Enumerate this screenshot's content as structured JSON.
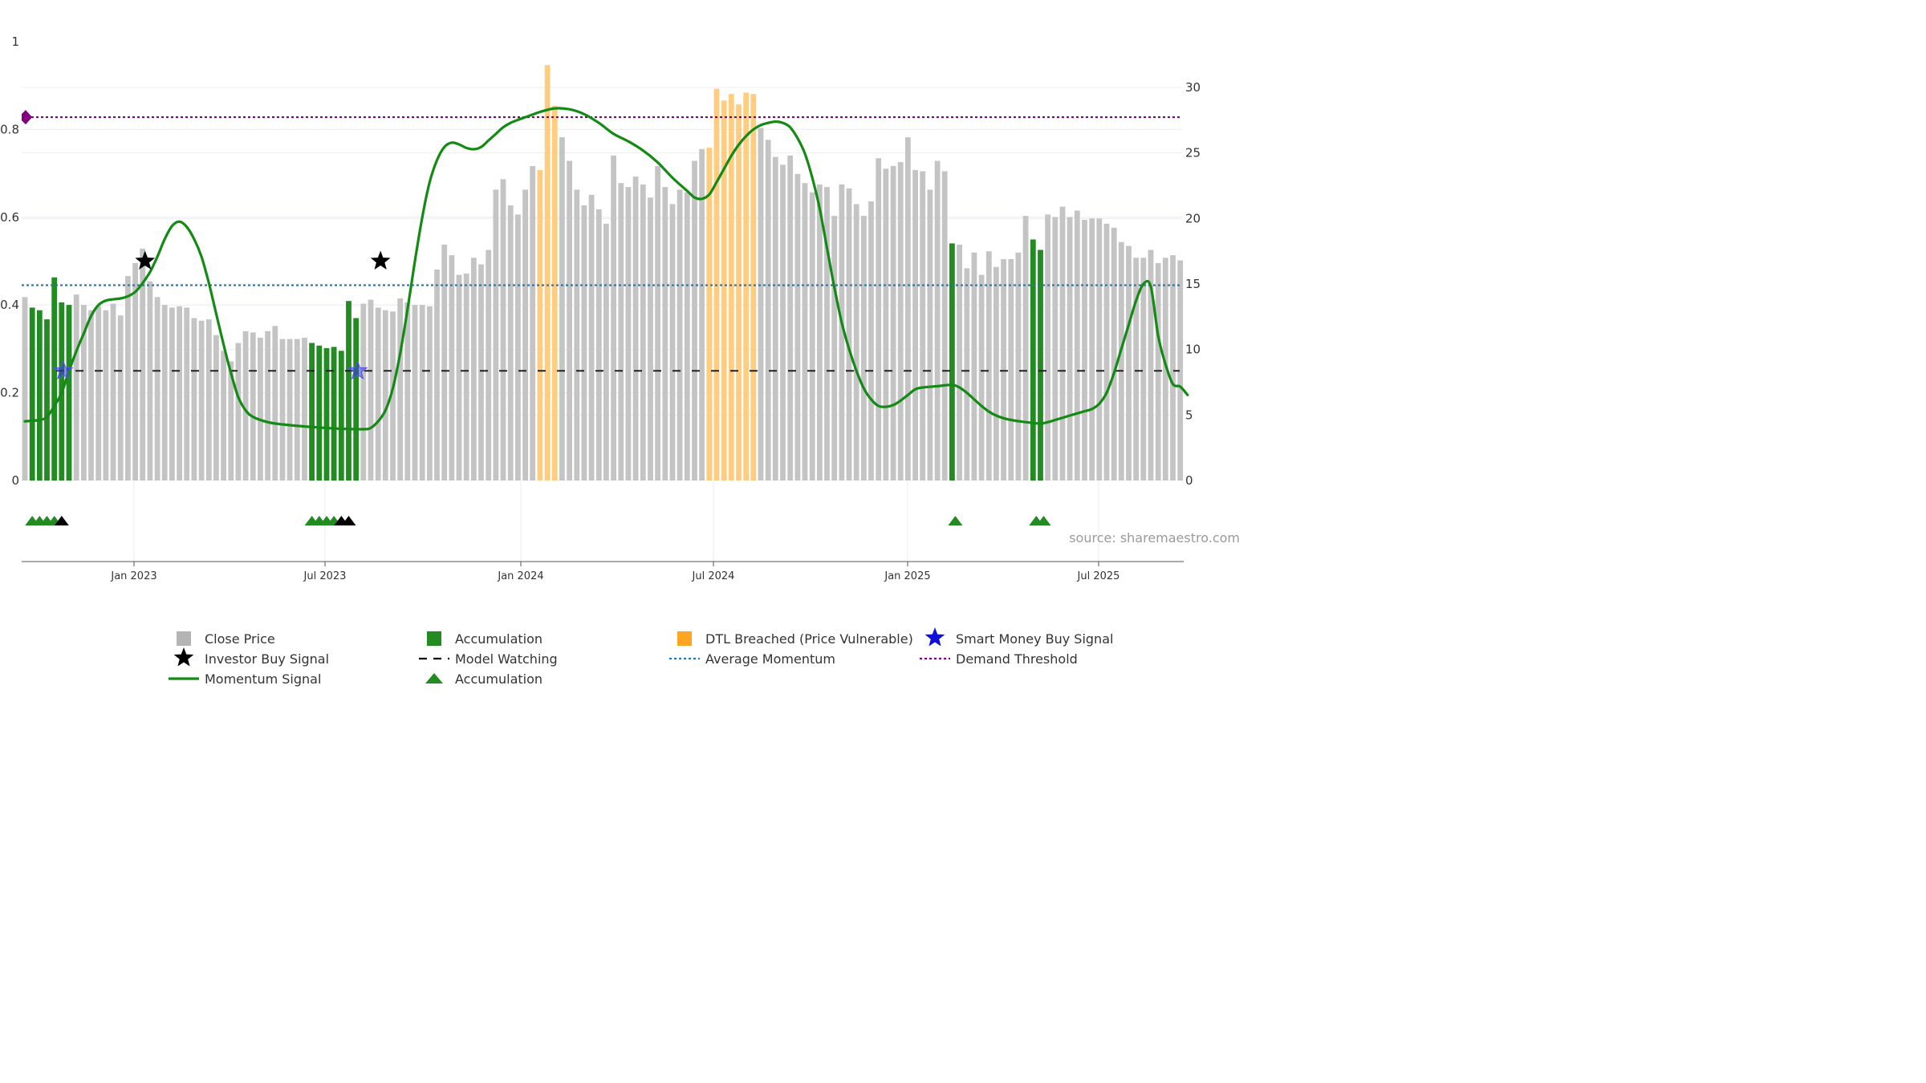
{
  "chart_data": {
    "type": "bar",
    "title": "",
    "source_note": "source: sharemaestro.com",
    "x_ticks": [
      "Jan 2023",
      "Jul 2023",
      "Jan 2024",
      "Jul 2024",
      "Jan 2025",
      "Jul 2025"
    ],
    "left_axis": {
      "ylim": [
        0,
        1
      ],
      "ticks": [
        "0",
        "0.2",
        "0.4",
        "0.6",
        "0.8",
        "1"
      ]
    },
    "right_axis": {
      "ylim": [
        0,
        33.5
      ],
      "ticks": [
        "0",
        "5",
        "10",
        "15",
        "20",
        "25",
        "30"
      ]
    },
    "grid": true,
    "legend_position": "bottom",
    "colors": {
      "close": "#c4c4c4",
      "accumulation": "#228b22",
      "dtl": "#ffcc80",
      "momentum": "#138a13",
      "model_watching": "#222222",
      "average_momentum": "#1f77b4",
      "demand_threshold": "#800080",
      "smart_money": "#2222cc",
      "investor": "#000000"
    },
    "close_price_weekly": [
      14.0,
      13.2,
      13.0,
      12.3,
      15.5,
      13.6,
      13.4,
      14.2,
      13.4,
      13.0,
      13.3,
      13.0,
      13.5,
      12.6,
      15.6,
      16.6,
      17.7,
      15.2,
      14.0,
      13.4,
      13.2,
      13.3,
      13.2,
      12.4,
      12.2,
      12.3,
      11.1,
      9.9,
      9.1,
      10.5,
      11.4,
      11.3,
      10.9,
      11.4,
      11.8,
      10.8,
      10.8,
      10.8,
      10.9,
      10.5,
      10.3,
      10.1,
      10.2,
      9.9,
      13.7,
      12.4,
      13.5,
      13.8,
      13.2,
      13.0,
      12.9,
      13.9,
      13.6,
      13.4,
      13.4,
      13.3,
      16.1,
      18.0,
      17.2,
      15.7,
      15.8,
      17.0,
      16.5,
      17.6,
      22.2,
      23.0,
      21.0,
      20.3,
      22.2,
      24.0,
      23.7,
      31.7,
      28.6,
      26.2,
      24.4,
      22.2,
      21.0,
      21.8,
      20.7,
      19.6,
      24.8,
      22.7,
      22.4,
      23.2,
      22.6,
      21.6,
      24.0,
      22.4,
      21.1,
      22.2,
      22.0,
      24.4,
      25.3,
      25.4,
      29.9,
      29.0,
      29.5,
      28.7,
      29.6,
      29.5,
      26.9,
      26.0,
      24.7,
      24.1,
      24.8,
      23.4,
      22.7,
      22.0,
      22.6,
      22.4,
      20.2,
      22.6,
      22.3,
      21.1,
      20.2,
      21.3,
      24.6,
      23.8,
      24.0,
      24.3,
      26.2,
      23.7,
      23.6,
      22.2,
      24.4,
      23.6,
      18.1,
      18.0,
      16.2,
      17.4,
      15.7,
      17.5,
      16.3,
      16.9,
      16.9,
      17.4,
      20.2,
      18.4,
      17.6,
      20.3,
      20.1,
      20.9,
      20.1,
      20.6,
      19.9,
      20.0,
      20.0,
      19.6,
      19.3,
      18.2,
      17.9,
      17.0,
      17.0,
      17.6,
      16.6,
      17.0,
      17.2,
      16.8
    ],
    "accumulation_weeks": [
      1,
      2,
      3,
      4,
      5,
      6,
      39,
      40,
      41,
      42,
      43,
      44,
      45,
      126,
      137,
      138
    ],
    "dtl_weeks": [
      70,
      71,
      72,
      93,
      94,
      95,
      96,
      97,
      98,
      99
    ],
    "momentum_signal_points": [
      [
        0,
        0.135
      ],
      [
        2,
        0.138
      ],
      [
        3,
        0.145
      ],
      [
        4,
        0.17
      ],
      [
        5,
        0.2
      ],
      [
        6,
        0.25
      ],
      [
        7,
        0.295
      ],
      [
        8,
        0.335
      ],
      [
        9,
        0.375
      ],
      [
        10,
        0.4
      ],
      [
        11,
        0.41
      ],
      [
        12,
        0.413
      ],
      [
        13,
        0.415
      ],
      [
        14,
        0.42
      ],
      [
        15,
        0.43
      ],
      [
        16,
        0.45
      ],
      [
        17,
        0.475
      ],
      [
        18,
        0.51
      ],
      [
        19,
        0.55
      ],
      [
        20,
        0.58
      ],
      [
        21,
        0.59
      ],
      [
        22,
        0.578
      ],
      [
        23,
        0.55
      ],
      [
        24,
        0.51
      ],
      [
        25,
        0.45
      ],
      [
        26,
        0.38
      ],
      [
        27,
        0.31
      ],
      [
        28,
        0.245
      ],
      [
        29,
        0.19
      ],
      [
        30,
        0.16
      ],
      [
        31,
        0.145
      ],
      [
        33,
        0.133
      ],
      [
        35,
        0.128
      ],
      [
        39,
        0.122
      ],
      [
        43,
        0.118
      ],
      [
        46,
        0.117
      ],
      [
        47,
        0.12
      ],
      [
        48,
        0.135
      ],
      [
        49,
        0.16
      ],
      [
        50,
        0.21
      ],
      [
        51,
        0.29
      ],
      [
        52,
        0.39
      ],
      [
        53,
        0.5
      ],
      [
        54,
        0.6
      ],
      [
        55,
        0.68
      ],
      [
        56,
        0.73
      ],
      [
        57,
        0.76
      ],
      [
        58,
        0.77
      ],
      [
        59,
        0.766
      ],
      [
        60,
        0.758
      ],
      [
        61,
        0.755
      ],
      [
        62,
        0.76
      ],
      [
        63,
        0.775
      ],
      [
        64,
        0.79
      ],
      [
        65,
        0.805
      ],
      [
        66,
        0.815
      ],
      [
        67,
        0.822
      ],
      [
        68,
        0.828
      ],
      [
        69,
        0.834
      ],
      [
        70,
        0.84
      ],
      [
        72,
        0.848
      ],
      [
        74,
        0.846
      ],
      [
        76,
        0.835
      ],
      [
        78,
        0.815
      ],
      [
        80,
        0.79
      ],
      [
        82,
        0.773
      ],
      [
        84,
        0.752
      ],
      [
        86,
        0.725
      ],
      [
        88,
        0.69
      ],
      [
        90,
        0.66
      ],
      [
        91,
        0.645
      ],
      [
        92,
        0.642
      ],
      [
        93,
        0.652
      ],
      [
        94,
        0.68
      ],
      [
        95,
        0.71
      ],
      [
        96,
        0.74
      ],
      [
        97,
        0.765
      ],
      [
        98,
        0.785
      ],
      [
        99,
        0.8
      ],
      [
        100,
        0.81
      ],
      [
        101,
        0.815
      ],
      [
        102,
        0.818
      ],
      [
        103,
        0.815
      ],
      [
        104,
        0.805
      ],
      [
        105,
        0.78
      ],
      [
        106,
        0.745
      ],
      [
        107,
        0.69
      ],
      [
        108,
        0.62
      ],
      [
        109,
        0.53
      ],
      [
        110,
        0.44
      ],
      [
        111,
        0.36
      ],
      [
        112,
        0.3
      ],
      [
        113,
        0.25
      ],
      [
        114,
        0.21
      ],
      [
        115,
        0.185
      ],
      [
        116,
        0.17
      ],
      [
        117,
        0.168
      ],
      [
        118,
        0.172
      ],
      [
        119,
        0.182
      ],
      [
        120,
        0.195
      ],
      [
        121,
        0.208
      ],
      [
        122,
        0.212
      ],
      [
        124,
        0.215
      ],
      [
        126,
        0.218
      ],
      [
        127,
        0.212
      ],
      [
        128,
        0.2
      ],
      [
        129,
        0.185
      ],
      [
        130,
        0.17
      ],
      [
        131,
        0.157
      ],
      [
        132,
        0.148
      ],
      [
        133,
        0.142
      ],
      [
        134,
        0.138
      ],
      [
        136,
        0.133
      ],
      [
        138,
        0.13
      ],
      [
        139,
        0.133
      ],
      [
        140,
        0.138
      ],
      [
        142,
        0.148
      ],
      [
        144,
        0.158
      ],
      [
        145,
        0.163
      ],
      [
        146,
        0.175
      ],
      [
        147,
        0.2
      ],
      [
        148,
        0.245
      ],
      [
        149,
        0.3
      ],
      [
        150,
        0.355
      ],
      [
        151,
        0.41
      ],
      [
        152,
        0.448
      ],
      [
        153,
        0.442
      ],
      [
        154,
        0.33
      ],
      [
        155,
        0.265
      ],
      [
        156,
        0.22
      ],
      [
        157,
        0.214
      ],
      [
        158,
        0.195
      ]
    ],
    "average_momentum": 0.445,
    "model_watching": 0.25,
    "demand_threshold": 0.828,
    "investor_buy_signals": [
      [
        16,
        0.5
      ],
      [
        48,
        0.5
      ]
    ],
    "smart_money_buy_signals": [
      [
        5,
        0.25
      ],
      [
        45,
        0.25
      ]
    ],
    "accumulation_markers_green": [
      1,
      2,
      3,
      4,
      39,
      40,
      41,
      42,
      126,
      137,
      138
    ],
    "accumulation_markers_black": [
      5,
      43,
      44
    ]
  },
  "legend": {
    "items": [
      {
        "label": "Close Price",
        "kind": "square",
        "color": "#b4b4b4"
      },
      {
        "label": "Investor Buy Signal",
        "kind": "star",
        "color": "#000000"
      },
      {
        "label": "Momentum Signal",
        "kind": "line",
        "color": "#138a13"
      },
      {
        "label": "Accumulation",
        "kind": "square",
        "color": "#228b22"
      },
      {
        "label": "Model Watching",
        "kind": "dashed",
        "color": "#000000"
      },
      {
        "label": "Accumulation",
        "kind": "triangle",
        "color": "#228b22"
      },
      {
        "label": "DTL Breached (Price Vulnerable)",
        "kind": "square",
        "color": "#ffa521"
      },
      {
        "label": "Average Momentum",
        "kind": "dotted",
        "color": "#1f77b4"
      },
      {
        "label": "Smart Money Buy Signal",
        "kind": "star",
        "color": "#1010dd"
      },
      {
        "label": "Demand Threshold",
        "kind": "dotted",
        "color": "#800080"
      }
    ]
  }
}
